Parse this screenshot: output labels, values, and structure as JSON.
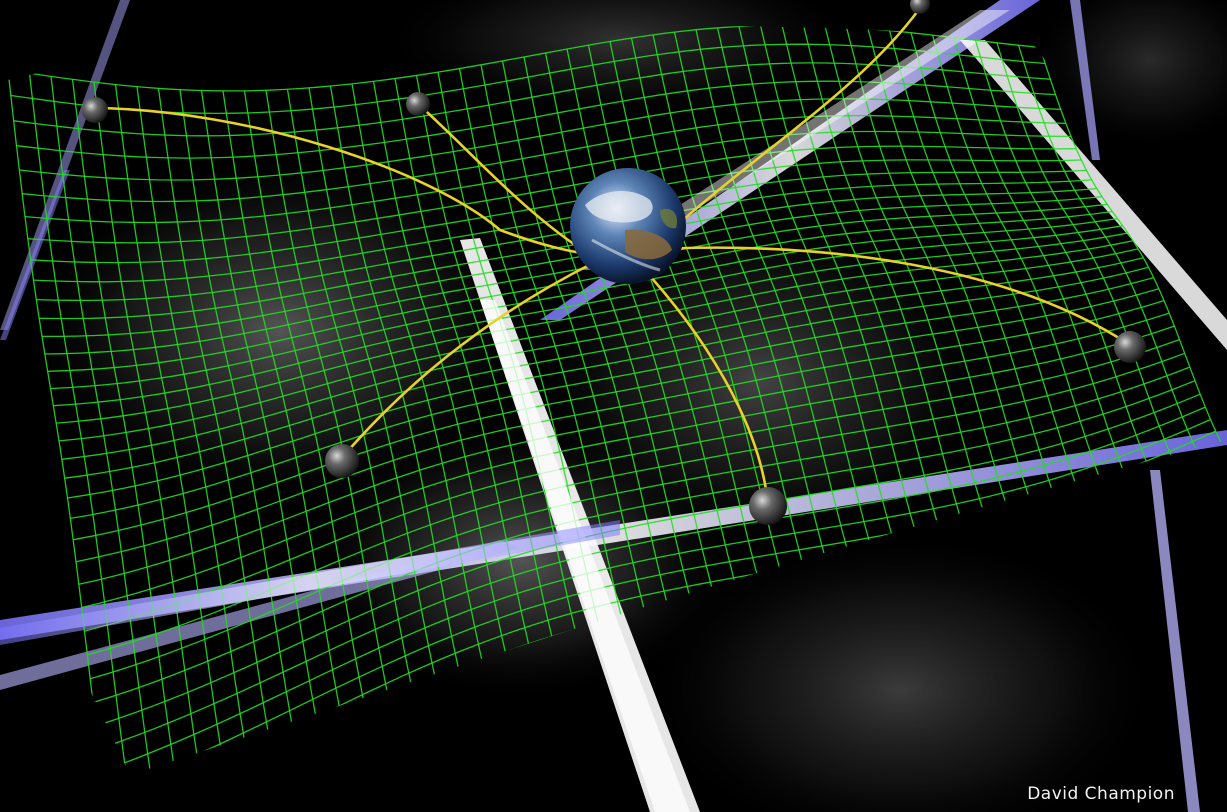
{
  "image": {
    "credit": "David Champion",
    "background_color": "#000000",
    "grid_color": "#22dd22",
    "thread_color": "#e6d22a",
    "beam_color": "#c9c7ff",
    "icons": [
      "earth-icon",
      "pulsar-icon"
    ]
  }
}
